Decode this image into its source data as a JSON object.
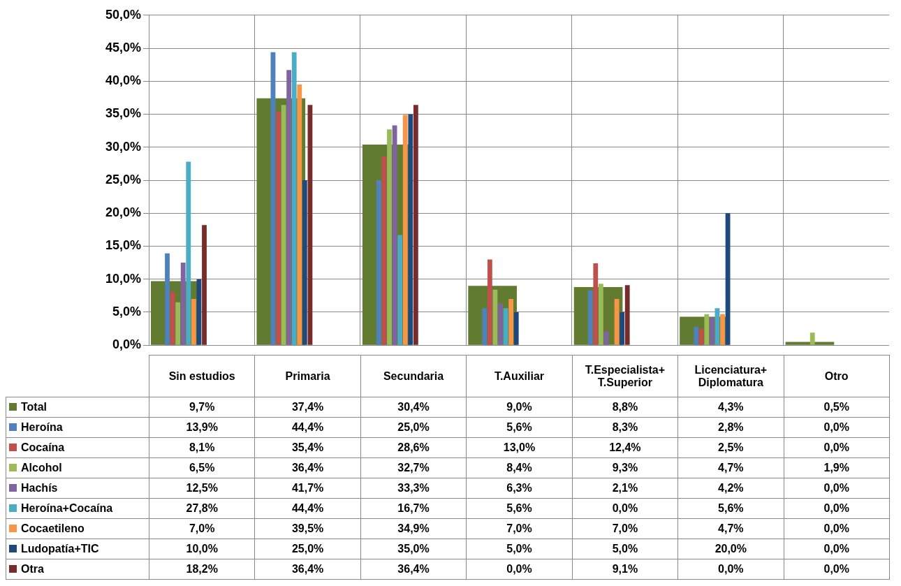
{
  "chart_data": {
    "type": "bar",
    "categories": [
      "Sin estudios",
      "Primaria",
      "Secundaria",
      "T.Auxiliar",
      "T.Especialista+\nT.Superior",
      "Licenciatura+\nDiplomatura",
      "Otro"
    ],
    "ylim": [
      0,
      50
    ],
    "yticks": [
      {
        "value": 0,
        "label": "0,0%"
      },
      {
        "value": 5,
        "label": "5,0%"
      },
      {
        "value": 10,
        "label": "10,0%"
      },
      {
        "value": 15,
        "label": "15,0%"
      },
      {
        "value": 20,
        "label": "20,0%"
      },
      {
        "value": 25,
        "label": "25,0%"
      },
      {
        "value": 30,
        "label": "30,0%"
      },
      {
        "value": 35,
        "label": "35,0%"
      },
      {
        "value": 40,
        "label": "40,0%"
      },
      {
        "value": 45,
        "label": "45,0%"
      },
      {
        "value": 50,
        "label": "50,0%"
      }
    ],
    "grid": true,
    "legend": "bottom",
    "series": [
      {
        "name": "Total",
        "color": "#617b30",
        "values": [
          9.7,
          37.4,
          30.4,
          9.0,
          8.8,
          4.3,
          0.5
        ],
        "value_labels": [
          "9,7%",
          "37,4%",
          "30,4%",
          "9,0%",
          "8,8%",
          "4,3%",
          "0,5%"
        ]
      },
      {
        "name": "Heroína",
        "color": "#4f81bd",
        "values": [
          13.9,
          44.4,
          25.0,
          5.6,
          8.3,
          2.8,
          0.0
        ],
        "value_labels": [
          "13,9%",
          "44,4%",
          "25,0%",
          "5,6%",
          "8,3%",
          "2,8%",
          "0,0%"
        ]
      },
      {
        "name": "Cocaína",
        "color": "#c0504d",
        "values": [
          8.1,
          35.4,
          28.6,
          13.0,
          12.4,
          2.5,
          0.0
        ],
        "value_labels": [
          "8,1%",
          "35,4%",
          "28,6%",
          "13,0%",
          "12,4%",
          "2,5%",
          "0,0%"
        ]
      },
      {
        "name": "Alcohol",
        "color": "#9bbb59",
        "values": [
          6.5,
          36.4,
          32.7,
          8.4,
          9.3,
          4.7,
          1.9
        ],
        "value_labels": [
          "6,5%",
          "36,4%",
          "32,7%",
          "8,4%",
          "9,3%",
          "4,7%",
          "1,9%"
        ]
      },
      {
        "name": "Hachís",
        "color": "#8064a2",
        "values": [
          12.5,
          41.7,
          33.3,
          6.3,
          2.1,
          4.2,
          0.0
        ],
        "value_labels": [
          "12,5%",
          "41,7%",
          "33,3%",
          "6,3%",
          "2,1%",
          "4,2%",
          "0,0%"
        ]
      },
      {
        "name": "Heroína+Cocaína",
        "color": "#4bacc6",
        "values": [
          27.8,
          44.4,
          16.7,
          5.6,
          0.0,
          5.6,
          0.0
        ],
        "value_labels": [
          "27,8%",
          "44,4%",
          "16,7%",
          "5,6%",
          "0,0%",
          "5,6%",
          "0,0%"
        ]
      },
      {
        "name": "Cocaetileno",
        "color": "#f79646",
        "values": [
          7.0,
          39.5,
          34.9,
          7.0,
          7.0,
          4.7,
          0.0
        ],
        "value_labels": [
          "7,0%",
          "39,5%",
          "34,9%",
          "7,0%",
          "7,0%",
          "4,7%",
          "0,0%"
        ]
      },
      {
        "name": "Ludopatía+TIC",
        "color": "#1f497d",
        "values": [
          10.0,
          25.0,
          35.0,
          5.0,
          5.0,
          20.0,
          0.0
        ],
        "value_labels": [
          "10,0%",
          "25,0%",
          "35,0%",
          "5,0%",
          "5,0%",
          "20,0%",
          "0,0%"
        ]
      },
      {
        "name": "Otra",
        "color": "#772c2a",
        "values": [
          18.2,
          36.4,
          36.4,
          0.0,
          9.1,
          0.0,
          0.0
        ],
        "value_labels": [
          "18,2%",
          "36,4%",
          "36,4%",
          "0,0%",
          "9,1%",
          "0,0%",
          "0,0%"
        ]
      }
    ]
  }
}
